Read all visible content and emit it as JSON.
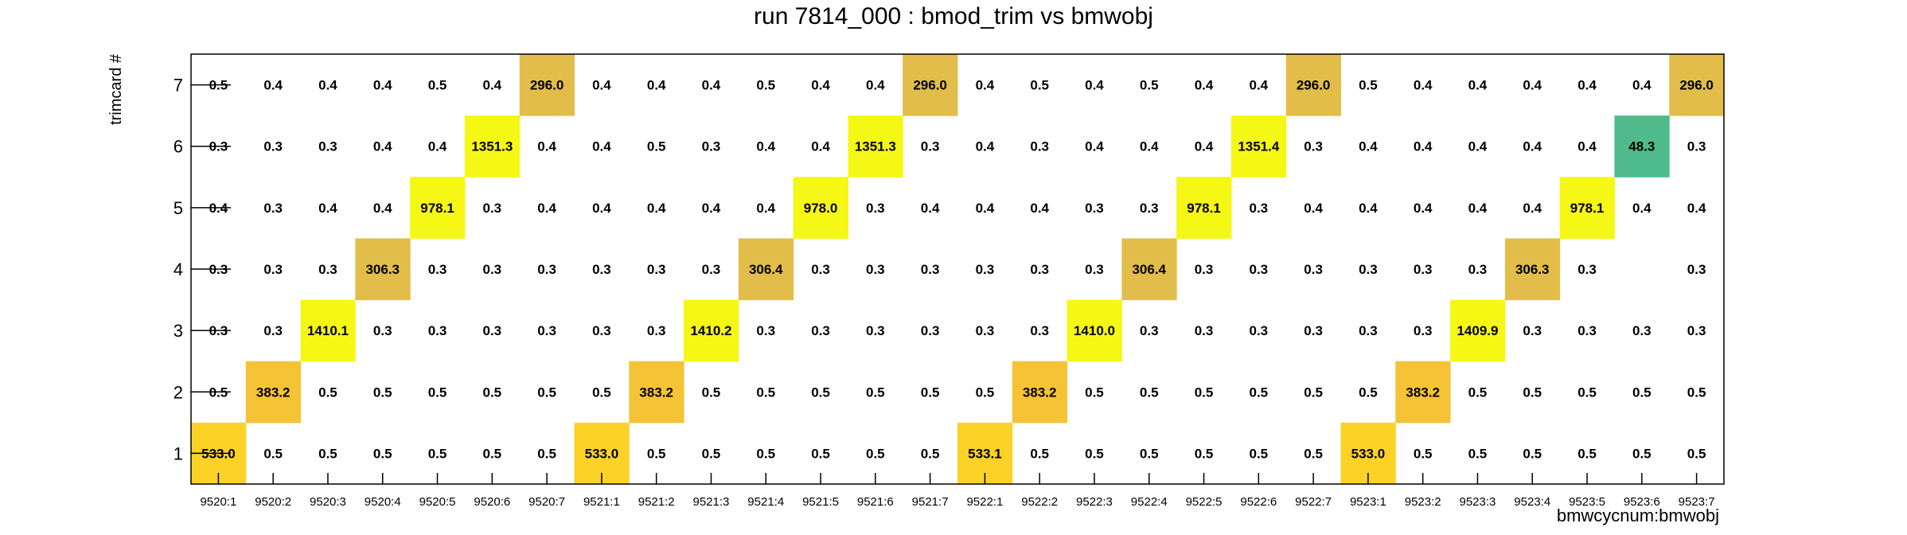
{
  "chart_data": {
    "type": "heatmap",
    "title": "run 7814_000 : bmod_trim vs bmwobj",
    "xlabel": "bmwcycnum:bmwobj",
    "ylabel": "trimcard #",
    "x_categories": [
      "9520:1",
      "9520:2",
      "9520:3",
      "9520:4",
      "9520:5",
      "9520:6",
      "9520:7",
      "9521:1",
      "9521:2",
      "9521:3",
      "9521:4",
      "9521:5",
      "9521:6",
      "9521:7",
      "9522:1",
      "9522:2",
      "9522:3",
      "9522:4",
      "9522:5",
      "9522:6",
      "9522:7",
      "9523:1",
      "9523:2",
      "9523:3",
      "9523:4",
      "9523:5",
      "9523:6",
      "9523:7"
    ],
    "y_categories": [
      "1",
      "2",
      "3",
      "4",
      "5",
      "6",
      "7"
    ],
    "rows": [
      {
        "y": "7",
        "values": [
          0.5,
          0.4,
          0.4,
          0.4,
          0.5,
          0.4,
          296.0,
          0.4,
          0.4,
          0.4,
          0.5,
          0.4,
          0.4,
          296.0,
          0.4,
          0.5,
          0.4,
          0.5,
          0.4,
          0.4,
          296.0,
          0.5,
          0.4,
          0.4,
          0.4,
          0.4,
          0.4,
          296.0
        ]
      },
      {
        "y": "6",
        "values": [
          0.3,
          0.3,
          0.3,
          0.4,
          0.4,
          1351.3,
          0.4,
          0.4,
          0.5,
          0.3,
          0.4,
          0.4,
          1351.3,
          0.3,
          0.4,
          0.3,
          0.4,
          0.4,
          0.4,
          1351.4,
          0.3,
          0.4,
          0.4,
          0.4,
          0.4,
          0.4,
          48.3,
          0.3
        ]
      },
      {
        "y": "5",
        "values": [
          0.4,
          0.3,
          0.4,
          0.4,
          978.1,
          0.3,
          0.4,
          0.4,
          0.4,
          0.4,
          0.4,
          978.0,
          0.3,
          0.4,
          0.4,
          0.4,
          0.3,
          0.3,
          978.1,
          0.3,
          0.4,
          0.4,
          0.4,
          0.4,
          0.4,
          978.1,
          0.4,
          0.4
        ]
      },
      {
        "y": "4",
        "values": [
          0.3,
          0.3,
          0.3,
          306.3,
          0.3,
          0.3,
          0.3,
          0.3,
          0.3,
          0.3,
          306.4,
          0.3,
          0.3,
          0.3,
          0.3,
          0.3,
          0.3,
          306.4,
          0.3,
          0.3,
          0.3,
          0.3,
          0.3,
          0.3,
          306.3,
          0.3,
          null,
          0.3
        ]
      },
      {
        "y": "3",
        "values": [
          0.3,
          0.3,
          1410.1,
          0.3,
          0.3,
          0.3,
          0.3,
          0.3,
          0.3,
          1410.2,
          0.3,
          0.3,
          0.3,
          0.3,
          0.3,
          0.3,
          1410.0,
          0.3,
          0.3,
          0.3,
          0.3,
          0.3,
          0.3,
          1409.9,
          0.3,
          0.3,
          0.3,
          0.3
        ]
      },
      {
        "y": "2",
        "values": [
          0.5,
          383.2,
          0.5,
          0.5,
          0.5,
          0.5,
          0.5,
          0.5,
          383.2,
          0.5,
          0.5,
          0.5,
          0.5,
          0.5,
          0.5,
          383.2,
          0.5,
          0.5,
          0.5,
          0.5,
          0.5,
          0.5,
          383.2,
          0.5,
          0.5,
          0.5,
          0.5,
          0.5
        ]
      },
      {
        "y": "1",
        "values": [
          533.0,
          0.5,
          0.5,
          0.5,
          0.5,
          0.5,
          0.5,
          533.0,
          0.5,
          0.5,
          0.5,
          0.5,
          0.5,
          0.5,
          533.1,
          0.5,
          0.5,
          0.5,
          0.5,
          0.5,
          0.5,
          533.0,
          0.5,
          0.5,
          0.5,
          0.5,
          0.5,
          0.5
        ]
      }
    ],
    "color_scale": {
      "min": 0,
      "max": 1410.2,
      "highlight_threshold": 10
    },
    "colors": {
      "very_high": "#f5f714",
      "high": "#fcd226",
      "mid_high": "#f6c336",
      "mid": "#e2bd4a",
      "low_mid": "#4fbb8b",
      "axis": "#000000",
      "text": "#000000"
    },
    "grid": false,
    "legend": "none"
  }
}
